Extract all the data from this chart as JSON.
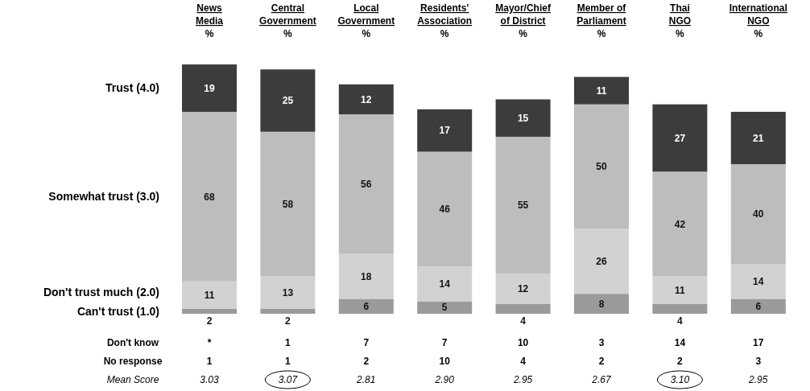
{
  "chart_data": {
    "type": "bar",
    "stacked": true,
    "ylim": [
      0,
      101
    ],
    "legend": false,
    "data_labels": true,
    "ylabel": "%",
    "categories": [
      "News Media",
      "Central Government",
      "Local Government",
      "Residents' Association",
      "Mayor/Chief of District",
      "Member of Parliament",
      "Thai NGO",
      "International NGO"
    ],
    "series": [
      {
        "name": "Can't trust (1.0)",
        "color": "#9a9a9a",
        "values": [
          2,
          2,
          6,
          5,
          4,
          8,
          4,
          6
        ]
      },
      {
        "name": "Don't trust much (2.0)",
        "color": "#d2d2d2",
        "values": [
          11,
          13,
          18,
          14,
          12,
          26,
          11,
          14
        ]
      },
      {
        "name": "Somewhat trust (3.0)",
        "color": "#bdbdbd",
        "values": [
          68,
          58,
          56,
          46,
          55,
          50,
          42,
          40
        ]
      },
      {
        "name": "Trust (4.0)",
        "color": "#3c3c3c",
        "values": [
          19,
          25,
          12,
          17,
          15,
          11,
          27,
          21
        ]
      }
    ],
    "annotations": [
      "Don't know",
      "*",
      "1",
      "7",
      "7",
      "10",
      "3",
      "14",
      "17",
      "No response",
      "1",
      "1",
      "2",
      "10",
      "4",
      "2",
      "2",
      "3",
      "Mean Score",
      "3.03",
      "3.07",
      "2.81",
      "2.90",
      "2.95",
      "2.67",
      "3.10",
      "2.95"
    ]
  }
}
